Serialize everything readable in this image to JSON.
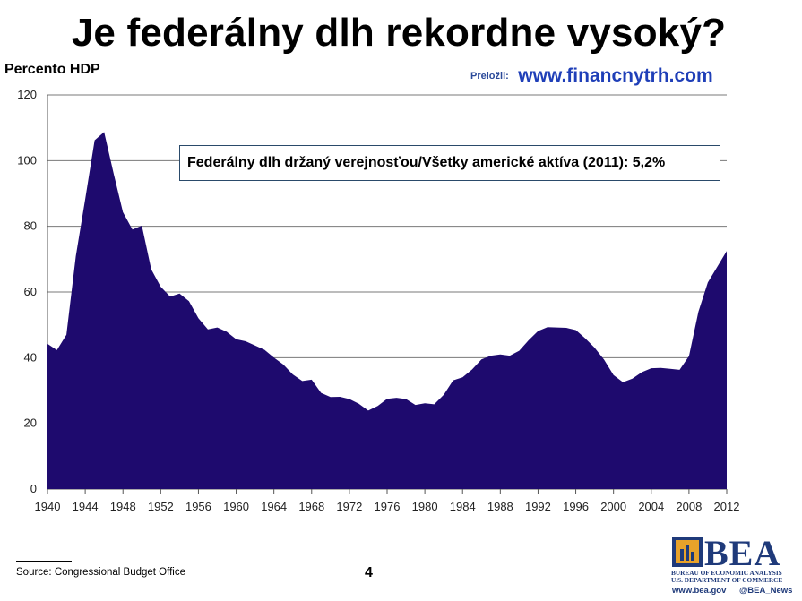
{
  "slide": {
    "title": "Je federálny dlh rekordne vysoký?",
    "translator_prefix": "Preložil:",
    "translator_site": "www.financnytrh.com",
    "annotation": "Federálny dlh držaný verejnosťou/Všetky americké aktíva (2011): 5,2%",
    "source": "Source: Congressional Budget Office",
    "page_number": "4"
  },
  "logo": {
    "name": "BEA",
    "line1": "BUREAU OF ECONOMIC ANALYSIS",
    "line2": "U.S. DEPARTMENT OF COMMERCE",
    "website": "www.bea.gov",
    "twitter": "@BEA_News"
  },
  "colors": {
    "area_fill": "#1e0a6e",
    "grid": "#7a7a7a",
    "title_link": "#1f3fb8",
    "logo_blue": "#1f3a7a",
    "logo_gold": "#e8a22a"
  },
  "chart_data": {
    "type": "area",
    "title": "",
    "xlabel": "",
    "ylabel": "Percento HDP",
    "ylim": [
      0,
      120
    ],
    "xlim": [
      1940,
      2012
    ],
    "yticks": [
      0,
      20,
      40,
      60,
      80,
      100,
      120
    ],
    "xticks": [
      1940,
      1944,
      1948,
      1952,
      1956,
      1960,
      1964,
      1968,
      1972,
      1976,
      1980,
      1984,
      1988,
      1992,
      1996,
      2000,
      2004,
      2008,
      2012
    ],
    "grid": true,
    "legend": "none",
    "series": [
      {
        "x": [
          1940,
          1941,
          1942,
          1943,
          1944,
          1945,
          1946,
          1947,
          1948,
          1949,
          1950,
          1951,
          1952,
          1953,
          1954,
          1955,
          1956,
          1957,
          1958,
          1959,
          1960,
          1961,
          1962,
          1963,
          1964,
          1965,
          1966,
          1967,
          1968,
          1969,
          1970,
          1971,
          1972,
          1973,
          1974,
          1975,
          1976,
          1977,
          1978,
          1979,
          1980,
          1981,
          1982,
          1983,
          1984,
          1985,
          1986,
          1987,
          1988,
          1989,
          1990,
          1991,
          1992,
          1993,
          1994,
          1995,
          1996,
          1997,
          1998,
          1999,
          2000,
          2001,
          2002,
          2003,
          2004,
          2005,
          2006,
          2007,
          2008,
          2009,
          2010,
          2011,
          2012
        ],
        "values": [
          44.2,
          42.3,
          47.0,
          70.9,
          88.3,
          106.2,
          108.7,
          96.2,
          84.3,
          79.0,
          80.2,
          66.9,
          61.6,
          58.6,
          59.5,
          57.2,
          52.0,
          48.6,
          49.2,
          47.9,
          45.6,
          45.0,
          43.7,
          42.4,
          40.0,
          37.9,
          34.9,
          32.9,
          33.3,
          29.3,
          28.0,
          28.1,
          27.4,
          26.0,
          23.9,
          25.3,
          27.5,
          27.8,
          27.4,
          25.6,
          26.1,
          25.8,
          28.7,
          33.1,
          34.0,
          36.4,
          39.5,
          40.6,
          41.0,
          40.6,
          42.1,
          45.3,
          48.1,
          49.3,
          49.2,
          49.1,
          48.4,
          45.9,
          43.0,
          39.4,
          34.7,
          32.5,
          33.6,
          35.6,
          36.8,
          36.9,
          36.6,
          36.3,
          40.5,
          54.0,
          62.9,
          67.7,
          72.5
        ]
      }
    ]
  }
}
